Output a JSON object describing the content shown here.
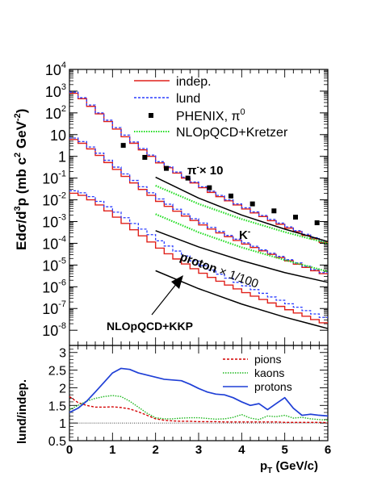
{
  "chart_data": [
    {
      "type": "line",
      "name": "spectra",
      "ylabel_main": "Edσ/d",
      "ylabel_sup": "3",
      "ylabel_rest": "p (mb c",
      "ylabel_sup2": "2",
      "ylabel_unit": "GeV",
      "ylabel_sup3": "-2",
      "ylabel_close": ")",
      "y_scale": "log",
      "ylim": [
        2e-09,
        10000
      ],
      "xlim": [
        0,
        6
      ],
      "x_ticks": [
        "0",
        "1",
        "2",
        "3",
        "4",
        "5",
        "6"
      ],
      "y_ticks": [
        {
          "base": "10",
          "exp": "4",
          "v": 10000
        },
        {
          "base": "10",
          "exp": "3",
          "v": 1000
        },
        {
          "base": "10",
          "exp": "2",
          "v": 100
        },
        {
          "base": "10",
          "exp": "",
          "v": 10
        },
        {
          "base": "1",
          "exp": "",
          "v": 1
        },
        {
          "base": "10",
          "exp": "-1",
          "v": 0.1
        },
        {
          "base": "10",
          "exp": "-2",
          "v": 0.01
        },
        {
          "base": "10",
          "exp": "-3",
          "v": 0.001
        },
        {
          "base": "10",
          "exp": "-4",
          "v": 0.0001
        },
        {
          "base": "10",
          "exp": "-5",
          "v": 1e-05
        },
        {
          "base": "10",
          "exp": "-6",
          "v": 1e-06
        },
        {
          "base": "10",
          "exp": "-7",
          "v": 1e-07
        },
        {
          "base": "10",
          "exp": "-8",
          "v": 1e-08
        }
      ],
      "legend": [
        {
          "label": "indep.",
          "style": "solid-red"
        },
        {
          "label": "lund",
          "style": "dashed-blue"
        },
        {
          "label": "PHENIX, π",
          "sup": "0",
          "style": "marker"
        },
        {
          "label": "NLOpQCD+Kretzer",
          "style": "dotted-green"
        }
      ],
      "annotations": {
        "pion": "π",
        "pion_sup": "-",
        "pion_rest": "× 10",
        "kaon": "K",
        "kaon_sup": "-",
        "proton": "proton",
        "proton_rest": "× 1/100",
        "nlo_kkp": "NLOpQCD+KKP"
      },
      "x_bins": [
        0,
        0.2,
        0.4,
        0.6,
        0.8,
        1.0,
        1.2,
        1.4,
        1.6,
        1.8,
        2.0,
        2.2,
        2.4,
        2.6,
        2.8,
        3.0,
        3.2,
        3.4,
        3.6,
        3.8,
        4.0,
        4.2,
        4.4,
        4.6,
        4.8,
        5.0,
        5.2,
        5.4,
        5.6,
        5.8,
        6.0
      ],
      "series": [
        {
          "name": "indep.",
          "group": "pion",
          "values": [
            800,
            450,
            200,
            90,
            40,
            18,
            8,
            4,
            2,
            1,
            0.5,
            0.3,
            0.17,
            0.1,
            0.06,
            0.036,
            0.022,
            0.014,
            0.009,
            0.0058,
            0.0038,
            0.0025,
            0.0017,
            0.0011,
            0.00075,
            0.0005,
            0.00034,
            0.00023,
            0.00016,
            0.00011
          ]
        },
        {
          "name": "lund",
          "group": "pion",
          "values": [
            900,
            500,
            230,
            100,
            46,
            21,
            9.5,
            4.6,
            2.3,
            1.15,
            0.57,
            0.33,
            0.19,
            0.11,
            0.066,
            0.04,
            0.025,
            0.016,
            0.01,
            0.0065,
            0.0043,
            0.0028,
            0.0019,
            0.00125,
            0.00085,
            0.00057,
            0.00038,
            0.00026,
            0.00018,
            0.000125
          ]
        },
        {
          "name": "indep.",
          "group": "kaon",
          "values": [
            6,
            4,
            2.2,
            1.1,
            0.52,
            0.25,
            0.12,
            0.06,
            0.03,
            0.016,
            0.0085,
            0.005,
            0.003,
            0.0018,
            0.00112,
            0.0007,
            0.00045,
            0.0003,
            0.0002,
            0.000135,
            9.2e-05,
            6.4e-05,
            4.5e-05,
            3.1e-05,
            2.2e-05,
            1.55e-05,
            1.1e-05,
            7.8e-06,
            5.5e-06,
            4e-06
          ]
        },
        {
          "name": "lund",
          "group": "kaon",
          "values": [
            7,
            4.8,
            2.7,
            1.4,
            0.66,
            0.32,
            0.155,
            0.078,
            0.04,
            0.021,
            0.011,
            0.0063,
            0.0037,
            0.0022,
            0.00135,
            0.00085,
            0.00054,
            0.00035,
            0.00023,
            0.000155,
            0.000105,
            7.3e-05,
            5e-05,
            3.5e-05,
            2.5e-05,
            1.75e-05,
            1.25e-05,
            8.8e-06,
            6.2e-06,
            4.5e-06
          ]
        },
        {
          "name": "indep.",
          "group": "proton",
          "values": [
            0.02,
            0.016,
            0.01,
            0.0058,
            0.0031,
            0.0016,
            0.00082,
            0.00042,
            0.00022,
            0.000115,
            6e-05,
            3.3e-05,
            1.9e-05,
            1.12e-05,
            6.8e-06,
            4.2e-06,
            2.7e-06,
            1.8e-06,
            1.2e-06,
            8e-07,
            5.4e-07,
            3.7e-07,
            2.6e-07,
            1.8e-07,
            1.25e-07,
            8.8e-08,
            6.2e-08,
            4.4e-08,
            3.1e-08,
            2.2e-08
          ]
        },
        {
          "name": "lund",
          "group": "proton",
          "values": [
            0.026,
            0.021,
            0.014,
            0.0085,
            0.0048,
            0.0027,
            0.0015,
            0.00082,
            0.00045,
            0.00025,
            0.00013,
            7.5e-05,
            4.4e-05,
            2.6e-05,
            1.55e-05,
            9.4e-06,
            5.9e-06,
            3.8e-06,
            2.5e-06,
            1.6e-06,
            1.1e-06,
            7.4e-07,
            5e-07,
            3.4e-07,
            2.4e-07,
            1.65e-07,
            1.15e-07,
            8e-08,
            5.6e-08,
            3.9e-08
          ]
        }
      ],
      "phenix_points": [
        {
          "x": 1.25,
          "y": 3.2
        },
        {
          "x": 1.75,
          "y": 0.9
        },
        {
          "x": 2.25,
          "y": 0.28
        },
        {
          "x": 2.75,
          "y": 0.1
        },
        {
          "x": 3.25,
          "y": 0.036
        },
        {
          "x": 3.75,
          "y": 0.015
        },
        {
          "x": 4.25,
          "y": 0.0065
        },
        {
          "x": 4.75,
          "y": 0.0031
        },
        {
          "x": 5.25,
          "y": 0.0016
        },
        {
          "x": 5.75,
          "y": 0.00088
        }
      ],
      "curves": [
        {
          "name": "pion NLO Kretzer",
          "style": "dotted-green",
          "x": [
            2.0,
            3.0,
            4.0,
            5.0,
            6.0
          ],
          "y": [
            0.045,
            0.0065,
            0.0013,
            0.00033,
            0.0001
          ]
        },
        {
          "name": "pion NLO KKP",
          "style": "solid-black",
          "x": [
            2.0,
            3.0,
            4.0,
            5.0,
            6.0
          ],
          "y": [
            0.11,
            0.012,
            0.002,
            0.00045,
            0.00012
          ]
        },
        {
          "name": "kaon NLO Kretzer",
          "style": "dotted-green",
          "x": [
            2.0,
            3.0,
            4.0,
            5.0,
            6.0
          ],
          "y": [
            0.0022,
            0.00032,
            6.5e-05,
            1.7e-05,
            5e-06
          ]
        },
        {
          "name": "kaon NLO KKP",
          "style": "solid-black",
          "x": [
            2.0,
            3.0,
            4.0,
            5.0,
            6.0
          ],
          "y": [
            0.00038,
            6.8e-05,
            1.6e-05,
            4.5e-06,
            1.6e-06
          ]
        },
        {
          "name": "proton NLO KKP",
          "style": "solid-black",
          "x": [
            2.0,
            3.0,
            4.0,
            5.0,
            6.0
          ],
          "y": [
            5.5e-06,
            8.2e-07,
            1.6e-07,
            4e-08,
            1.2e-08
          ]
        }
      ]
    },
    {
      "type": "line",
      "name": "ratio",
      "ylabel": "lund/indep.",
      "xlabel_main": "p",
      "xlabel_sub": "T",
      "xlabel_rest": " (GeV/c)",
      "ylim": [
        0.5,
        3.2
      ],
      "xlim": [
        0,
        6
      ],
      "y_ticks": [
        "0.5",
        "1",
        "1.5",
        "2",
        "2.5",
        "3"
      ],
      "y_tick_values": [
        0.5,
        1,
        1.5,
        2,
        2.5,
        3
      ],
      "legend": [
        {
          "label": "pions",
          "style": "dashed-red"
        },
        {
          "label": "kaons",
          "style": "dotted-green"
        },
        {
          "label": "protons",
          "style": "solid-blue"
        }
      ],
      "reference_line": 1,
      "series": [
        {
          "name": "pions",
          "color": "#d40000",
          "x": [
            0,
            0.2,
            0.4,
            0.6,
            0.8,
            1.0,
            1.2,
            1.4,
            1.6,
            1.8,
            2.0,
            2.2,
            2.4,
            2.6,
            2.8,
            3.0,
            3.2,
            3.4,
            3.6,
            3.8,
            4.0,
            4.2,
            4.4,
            4.6,
            4.8,
            5.0,
            5.2,
            5.4,
            5.6,
            5.8,
            6.0
          ],
          "y": [
            1.75,
            1.58,
            1.5,
            1.45,
            1.45,
            1.46,
            1.44,
            1.4,
            1.32,
            1.22,
            1.12,
            1.08,
            1.06,
            1.05,
            1.05,
            1.04,
            1.04,
            1.04,
            1.03,
            1.03,
            1.03,
            1.03,
            1.03,
            1.03,
            1.03,
            1.02,
            1.02,
            1.02,
            1.02,
            1.02,
            1.01
          ]
        },
        {
          "name": "kaons",
          "color": "#1fb81f",
          "x": [
            0,
            0.2,
            0.4,
            0.6,
            0.8,
            1.0,
            1.2,
            1.4,
            1.6,
            1.8,
            2.0,
            2.2,
            2.4,
            2.6,
            2.8,
            3.0,
            3.2,
            3.4,
            3.6,
            3.8,
            4.0,
            4.2,
            4.4,
            4.6,
            4.8,
            5.0,
            5.2,
            5.4,
            5.6,
            5.8,
            6.0
          ],
          "y": [
            1.38,
            1.5,
            1.62,
            1.7,
            1.75,
            1.78,
            1.75,
            1.62,
            1.45,
            1.28,
            1.15,
            1.12,
            1.12,
            1.14,
            1.15,
            1.15,
            1.13,
            1.11,
            1.12,
            1.16,
            1.24,
            1.14,
            1.1,
            1.2,
            1.18,
            1.22,
            1.14,
            1.16,
            1.12,
            1.1,
            1.08
          ]
        },
        {
          "name": "protons",
          "color": "#1f3fd6",
          "x": [
            0,
            0.2,
            0.4,
            0.6,
            0.8,
            1.0,
            1.2,
            1.4,
            1.6,
            1.8,
            2.0,
            2.2,
            2.4,
            2.6,
            2.8,
            3.0,
            3.2,
            3.4,
            3.6,
            3.8,
            4.0,
            4.2,
            4.4,
            4.6,
            4.8,
            5.0,
            5.2,
            5.4,
            5.6,
            5.8,
            6.0
          ],
          "y": [
            1.3,
            1.42,
            1.62,
            1.88,
            2.15,
            2.42,
            2.55,
            2.52,
            2.42,
            2.36,
            2.3,
            2.24,
            2.22,
            2.2,
            2.1,
            1.98,
            1.88,
            1.82,
            1.8,
            1.72,
            1.6,
            1.5,
            1.55,
            1.38,
            1.55,
            1.72,
            1.42,
            1.22,
            1.25,
            1.22,
            1.2
          ]
        }
      ]
    }
  ]
}
